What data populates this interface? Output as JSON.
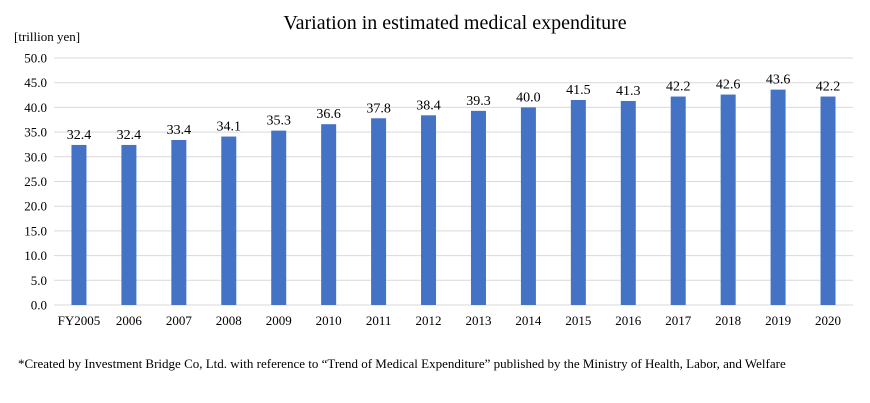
{
  "chart_data": {
    "type": "bar",
    "title": "Variation in estimated medical expenditure",
    "unit_label": "[trillion yen]",
    "xlabel": "",
    "ylabel": "",
    "categories": [
      "FY2005",
      "2006",
      "2007",
      "2008",
      "2009",
      "2010",
      "2011",
      "2012",
      "2013",
      "2014",
      "2015",
      "2016",
      "2017",
      "2018",
      "2019",
      "2020"
    ],
    "values": [
      32.4,
      32.4,
      33.4,
      34.1,
      35.3,
      36.6,
      37.8,
      38.4,
      39.3,
      40.0,
      41.5,
      41.3,
      42.2,
      42.6,
      43.6,
      42.2
    ],
    "value_labels": [
      "32.4",
      "32.4",
      "33.4",
      "34.1",
      "35.3",
      "36.6",
      "37.8",
      "38.4",
      "39.3",
      "40.0",
      "41.5",
      "41.3",
      "42.2",
      "42.6",
      "43.6",
      "42.2"
    ],
    "ylim": [
      0,
      50
    ],
    "yticks": [
      "0.0",
      "5.0",
      "10.0",
      "15.0",
      "20.0",
      "25.0",
      "30.0",
      "35.0",
      "40.0",
      "45.0",
      "50.0"
    ],
    "grid": true,
    "legend": "none",
    "bar_color": "#4472C4",
    "grid_color": "#D9D9D9"
  },
  "footnote": "*Created by Investment Bridge Co, Ltd. with reference to “Trend of Medical Expenditure” published by the Ministry of Health, Labor, and Welfare"
}
